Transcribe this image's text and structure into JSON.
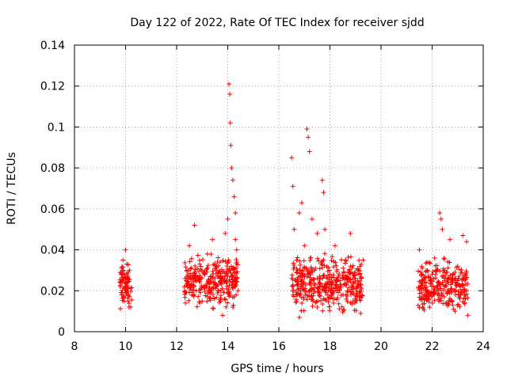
{
  "chart_data": {
    "type": "scatter",
    "title": "Day 122 of 2022, Rate Of TEC Index for receiver sjdd",
    "xlabel": "GPS time / hours",
    "ylabel": "ROTI / TECUs",
    "xlim": [
      8,
      24
    ],
    "ylim": [
      0,
      0.14
    ],
    "xticks": [
      8,
      10,
      12,
      14,
      16,
      18,
      20,
      22,
      24
    ],
    "yticks": [
      0,
      0.02,
      0.04,
      0.06,
      0.08,
      0.1,
      0.12,
      0.14
    ],
    "ytick_labels": [
      "0",
      "0.02",
      "0.04",
      "0.06",
      "0.08",
      "0.1",
      "0.12",
      "0.14"
    ],
    "grid": true,
    "marker": "+",
    "color": "#ff0000",
    "series": [
      {
        "name": "ROTI",
        "points": [
          [
            9.8,
            0.024
          ],
          [
            9.85,
            0.031
          ],
          [
            9.9,
            0.018
          ],
          [
            9.95,
            0.028
          ],
          [
            10.0,
            0.04
          ],
          [
            10.05,
            0.022
          ],
          [
            10.1,
            0.015
          ],
          [
            10.15,
            0.03
          ],
          [
            10.2,
            0.012
          ],
          [
            9.9,
            0.035
          ],
          [
            10.0,
            0.026
          ],
          [
            10.1,
            0.021
          ],
          [
            9.85,
            0.019
          ],
          [
            10.05,
            0.033
          ],
          [
            12.3,
            0.022
          ],
          [
            12.4,
            0.03
          ],
          [
            12.5,
            0.042
          ],
          [
            12.6,
            0.018
          ],
          [
            12.7,
            0.052
          ],
          [
            12.8,
            0.025
          ],
          [
            12.9,
            0.033
          ],
          [
            13.0,
            0.015
          ],
          [
            13.1,
            0.028
          ],
          [
            13.2,
            0.038
          ],
          [
            13.3,
            0.021
          ],
          [
            13.4,
            0.045
          ],
          [
            13.5,
            0.026
          ],
          [
            13.6,
            0.019
          ],
          [
            13.7,
            0.034
          ],
          [
            13.8,
            0.008
          ],
          [
            13.9,
            0.048
          ],
          [
            14.0,
            0.055
          ],
          [
            14.05,
            0.121
          ],
          [
            14.08,
            0.116
          ],
          [
            14.1,
            0.102
          ],
          [
            14.12,
            0.091
          ],
          [
            14.15,
            0.08
          ],
          [
            14.2,
            0.074
          ],
          [
            14.25,
            0.066
          ],
          [
            14.3,
            0.058
          ],
          [
            14.35,
            0.04
          ],
          [
            14.4,
            0.02
          ],
          [
            14.1,
            0.03
          ],
          [
            14.2,
            0.012
          ],
          [
            14.3,
            0.045
          ],
          [
            16.5,
            0.085
          ],
          [
            16.55,
            0.071
          ],
          [
            16.6,
            0.05
          ],
          [
            16.7,
            0.035
          ],
          [
            16.8,
            0.058
          ],
          [
            16.9,
            0.063
          ],
          [
            17.0,
            0.042
          ],
          [
            17.1,
            0.099
          ],
          [
            17.15,
            0.095
          ],
          [
            17.2,
            0.088
          ],
          [
            17.3,
            0.055
          ],
          [
            17.4,
            0.03
          ],
          [
            17.5,
            0.048
          ],
          [
            17.6,
            0.022
          ],
          [
            17.7,
            0.074
          ],
          [
            17.75,
            0.068
          ],
          [
            17.8,
            0.05
          ],
          [
            17.9,
            0.018
          ],
          [
            18.0,
            0.028
          ],
          [
            18.2,
            0.042
          ],
          [
            18.4,
            0.025
          ],
          [
            18.6,
            0.035
          ],
          [
            18.8,
            0.048
          ],
          [
            19.0,
            0.015
          ],
          [
            19.1,
            0.028
          ],
          [
            19.2,
            0.009
          ],
          [
            19.3,
            0.035
          ],
          [
            16.8,
            0.007
          ],
          [
            17.5,
            0.012
          ],
          [
            21.5,
            0.04
          ],
          [
            21.6,
            0.025
          ],
          [
            21.7,
            0.018
          ],
          [
            21.8,
            0.034
          ],
          [
            21.9,
            0.012
          ],
          [
            22.0,
            0.028
          ],
          [
            22.1,
            0.036
          ],
          [
            22.2,
            0.022
          ],
          [
            22.3,
            0.058
          ],
          [
            22.35,
            0.055
          ],
          [
            22.4,
            0.05
          ],
          [
            22.5,
            0.03
          ],
          [
            22.6,
            0.019
          ],
          [
            22.7,
            0.045
          ],
          [
            22.8,
            0.025
          ],
          [
            22.9,
            0.01
          ],
          [
            23.0,
            0.032
          ],
          [
            23.1,
            0.022
          ],
          [
            23.2,
            0.047
          ],
          [
            23.3,
            0.028
          ],
          [
            23.4,
            0.008
          ],
          [
            23.35,
            0.044
          ]
        ],
        "dense_windows": [
          {
            "x": [
              9.75,
              10.25
            ],
            "y_center": 0.022,
            "y_spread": 0.009
          },
          {
            "x": [
              12.3,
              14.4
            ],
            "y_center": 0.025,
            "y_spread": 0.01
          },
          {
            "x": [
              16.5,
              19.3
            ],
            "y_center": 0.023,
            "y_spread": 0.011
          },
          {
            "x": [
              21.45,
              23.4
            ],
            "y_center": 0.022,
            "y_spread": 0.01
          }
        ]
      }
    ]
  }
}
